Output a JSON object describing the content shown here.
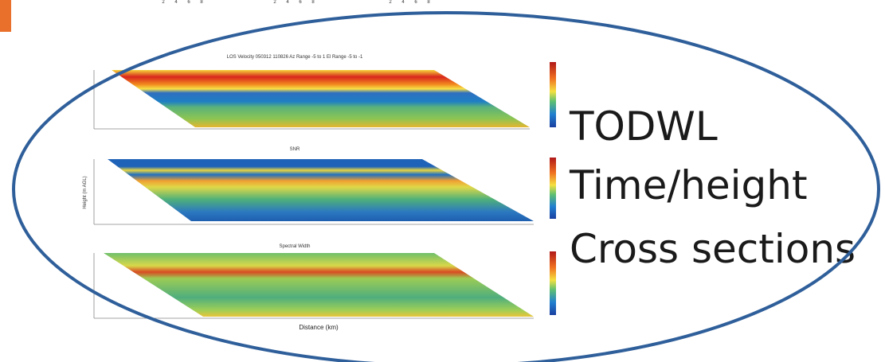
{
  "top_axis_fragments": [
    "2",
    "4",
    "6",
    "8",
    "2",
    "4",
    "6",
    "8",
    "2",
    "4",
    "6",
    "8"
  ],
  "panels": [
    {
      "title": "LOS Velocity 050312 110826 Az Range -5 to 1 El Range -5 to -1"
    },
    {
      "title": "SNR"
    },
    {
      "title": "Spectral Width"
    }
  ],
  "x_axis_label": "Distance (km)",
  "y_axis_label": "Height (m AGL)",
  "caption_lines": [
    "TODWL",
    "Time/height",
    "Cross sections"
  ]
}
